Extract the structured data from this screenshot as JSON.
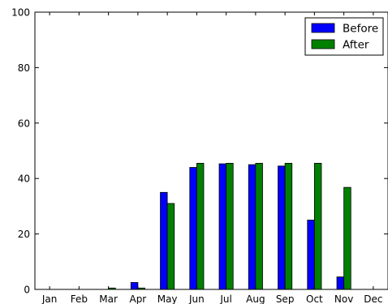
{
  "chart_data": {
    "type": "bar",
    "title": "",
    "xlabel": "",
    "ylabel": "",
    "categories": [
      "Jan",
      "Feb",
      "Mar",
      "Apr",
      "May",
      "Jun",
      "Jul",
      "Aug",
      "Sep",
      "Oct",
      "Nov",
      "Dec"
    ],
    "ylim": [
      0,
      100
    ],
    "yticks": [
      0,
      20,
      40,
      60,
      80,
      100
    ],
    "grid": false,
    "legend_position": "top-right",
    "series": [
      {
        "name": "Before",
        "color": "#0000ff",
        "values": [
          0,
          0,
          0,
          2.5,
          35,
          44,
          45.3,
          45,
          44.5,
          25,
          4.5,
          0
        ]
      },
      {
        "name": "After",
        "color": "#008000",
        "values": [
          0,
          0,
          0.5,
          0.5,
          31,
          45.5,
          45.5,
          45.5,
          45.5,
          45.5,
          36.8,
          0
        ]
      }
    ]
  }
}
